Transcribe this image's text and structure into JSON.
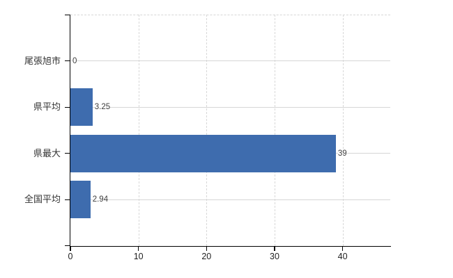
{
  "chart_data": {
    "type": "bar",
    "orientation": "horizontal",
    "title": "",
    "categories": [
      "尾張旭市",
      "県平均",
      "県最大",
      "全国平均"
    ],
    "values": [
      0,
      3.25,
      39,
      2.94
    ],
    "value_labels": [
      "0",
      "3.25",
      "39",
      "2.94"
    ],
    "x_tick_labels": [
      "0",
      "10",
      "20",
      "30",
      "40"
    ],
    "x_tick_values": [
      0,
      10,
      20,
      30,
      40
    ],
    "xlim": [
      0,
      47
    ],
    "ylabel": "",
    "xlabel": "",
    "legend": "none",
    "grid": {
      "vertical": "dashed",
      "horizontal": "solid-through-bar-centers",
      "top_border": "dashed"
    },
    "colors": {
      "bar": "#3e6cae",
      "grid": "#d6d6d6",
      "axis": "#000000",
      "category_label": "#333333",
      "tick_label": "#1f1f1f",
      "value_label": "#3d3d3d",
      "background": "#ffffff"
    }
  }
}
